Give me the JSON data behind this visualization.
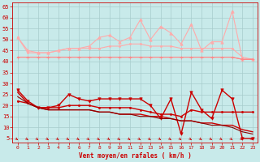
{
  "x": [
    0,
    1,
    2,
    3,
    4,
    5,
    6,
    7,
    8,
    9,
    10,
    11,
    12,
    13,
    14,
    15,
    16,
    17,
    18,
    19,
    20,
    21,
    22,
    23
  ],
  "series": [
    {
      "label": "rafales_spiky",
      "color": "#ffaaaa",
      "linewidth": 0.8,
      "marker": "^",
      "markersize": 2.5,
      "y": [
        51,
        45,
        44,
        44,
        45,
        46,
        46,
        47,
        51,
        52,
        49,
        51,
        59,
        50,
        56,
        53,
        48,
        57,
        45,
        49,
        49,
        63,
        41,
        41
      ]
    },
    {
      "label": "rafales_smooth",
      "color": "#ffaaaa",
      "linewidth": 0.8,
      "marker": "o",
      "markersize": 1.5,
      "y": [
        51,
        44,
        44,
        44,
        45,
        46,
        46,
        46,
        46,
        47,
        47,
        48,
        48,
        47,
        47,
        47,
        46,
        46,
        46,
        46,
        46,
        46,
        42,
        41
      ]
    },
    {
      "label": "vent_spiky",
      "color": "#ff8888",
      "linewidth": 0.8,
      "marker": "+",
      "markersize": 3,
      "y": [
        42,
        42,
        42,
        42,
        42,
        42,
        42,
        42,
        42,
        42,
        42,
        42,
        42,
        42,
        42,
        42,
        42,
        42,
        42,
        42,
        42,
        42,
        41,
        41
      ]
    },
    {
      "label": "vent_smooth",
      "color": "#ff8888",
      "linewidth": 0.8,
      "marker": null,
      "markersize": 0,
      "y": [
        42,
        42,
        42,
        42,
        42,
        42,
        42,
        42,
        42,
        42,
        42,
        42,
        42,
        42,
        42,
        42,
        42,
        42,
        42,
        42,
        42,
        42,
        41,
        41
      ]
    },
    {
      "label": "dark_rafales",
      "color": "#cc0000",
      "linewidth": 1.0,
      "marker": "v",
      "markersize": 2.5,
      "y": [
        27,
        22,
        19,
        19,
        20,
        25,
        23,
        22,
        23,
        23,
        23,
        23,
        23,
        20,
        14,
        23,
        7,
        26,
        18,
        14,
        27,
        23,
        5,
        5
      ]
    },
    {
      "label": "dark_vent1",
      "color": "#cc0000",
      "linewidth": 1.0,
      "marker": "o",
      "markersize": 1.5,
      "y": [
        22,
        21,
        19,
        19,
        19,
        20,
        20,
        20,
        19,
        19,
        19,
        19,
        18,
        17,
        16,
        16,
        15,
        18,
        17,
        17,
        17,
        17,
        17,
        17
      ]
    },
    {
      "label": "dark_vent2",
      "color": "#cc0000",
      "linewidth": 1.0,
      "marker": null,
      "markersize": 0,
      "y": [
        26,
        21,
        19,
        18,
        18,
        18,
        18,
        18,
        17,
        17,
        16,
        16,
        16,
        15,
        15,
        14,
        13,
        13,
        12,
        12,
        11,
        11,
        9,
        8
      ]
    },
    {
      "label": "dark_vent3",
      "color": "#880000",
      "linewidth": 0.8,
      "marker": null,
      "markersize": 0,
      "y": [
        24,
        21,
        19,
        18,
        18,
        18,
        18,
        18,
        17,
        17,
        16,
        16,
        15,
        15,
        14,
        14,
        13,
        13,
        12,
        11,
        11,
        10,
        8,
        7
      ]
    }
  ],
  "xlim": [
    -0.5,
    23.5
  ],
  "ylim": [
    3,
    67
  ],
  "yticks": [
    5,
    10,
    15,
    20,
    25,
    30,
    35,
    40,
    45,
    50,
    55,
    60,
    65
  ],
  "xticks": [
    0,
    1,
    2,
    3,
    4,
    5,
    6,
    7,
    8,
    9,
    10,
    11,
    12,
    13,
    14,
    15,
    16,
    17,
    18,
    19,
    20,
    21,
    22,
    23
  ],
  "xlabel": "Vent moyen/en rafales ( km/h )",
  "bg_color": "#c8eaea",
  "grid_color": "#a8cccc",
  "text_color": "#cc0000",
  "tick_color": "#cc0000"
}
